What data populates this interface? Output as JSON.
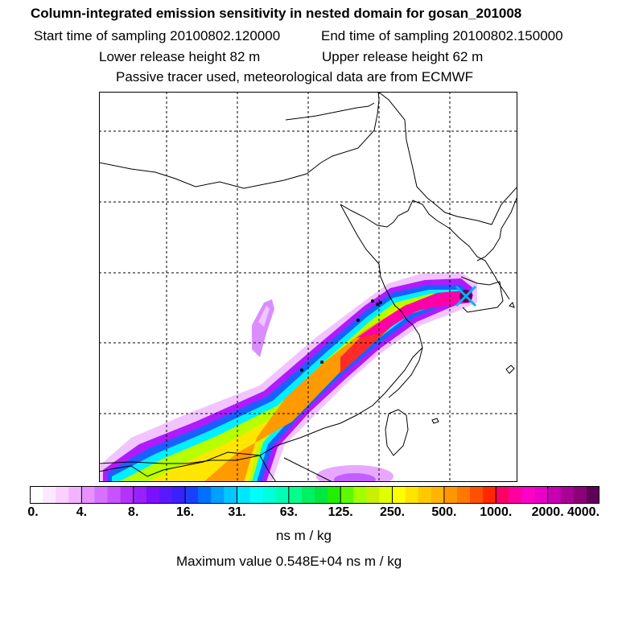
{
  "header": {
    "title": "Column-integrated emission sensitivity in nested domain for gosan_201008",
    "start_time": "Start time of sampling 20100802.120000",
    "end_time": "End time of sampling 20100802.150000",
    "lower_release": "Lower release height   82 m",
    "upper_release": "Upper release height   62 m",
    "tracer_info": "Passive tracer used, meteorological data are from ECMWF"
  },
  "colorbar": {
    "tick_labels": [
      "0.",
      "4.",
      "8.",
      "16.",
      "31.",
      "63.",
      "125.",
      "250.",
      "500.",
      "1000.",
      "2000.",
      "4000."
    ],
    "colors": [
      "#ffffff",
      "#fde8ff",
      "#f9d0ff",
      "#f3b4ff",
      "#e890ff",
      "#d870ff",
      "#c852ff",
      "#b432ff",
      "#9b20ff",
      "#7d10ff",
      "#5a18ff",
      "#3a20ff",
      "#1a40ff",
      "#0070ff",
      "#00a0ff",
      "#00c8ff",
      "#00e6ff",
      "#00ffff",
      "#00ffdc",
      "#00ffb4",
      "#00ff8c",
      "#00f064",
      "#00e840",
      "#20f000",
      "#60f800",
      "#a0ff00",
      "#c8f000",
      "#e0ff00",
      "#ffff00",
      "#ffe400",
      "#ffc800",
      "#ffb400",
      "#ff9600",
      "#ff7800",
      "#ff5000",
      "#ff2800",
      "#ff0064",
      "#ff00a0",
      "#ff00c8",
      "#e600c8",
      "#c800b4",
      "#aa0096",
      "#8c0078",
      "#60005a"
    ],
    "units": "ns m / kg"
  },
  "footer": {
    "maximum_value": "Maximum value  0.548E+04 ns m / kg"
  },
  "palette": {
    "grid": "#000000",
    "coast": "#000000",
    "receptor_marker": "#00b4ff"
  }
}
